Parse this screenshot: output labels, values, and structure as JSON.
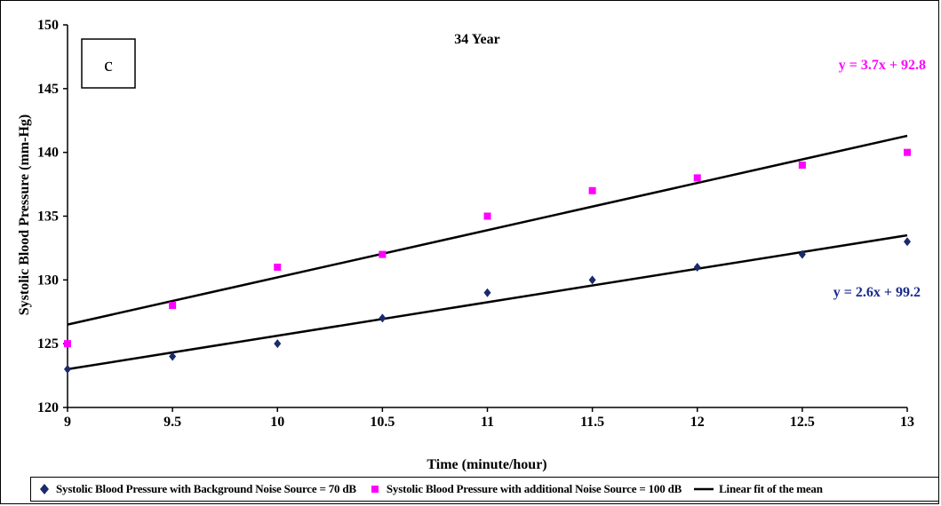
{
  "chart_data": {
    "type": "scatter",
    "panel_label": "c",
    "title": "34 Year",
    "xlabel": "Time (minute/hour)",
    "ylabel": "Systolic Blood Pressure (mm-Hg)",
    "xlim": [
      9,
      13
    ],
    "ylim": [
      120,
      150
    ],
    "x_ticks": [
      "9",
      "9.5",
      "10",
      "10.5",
      "11",
      "11.5",
      "12",
      "12.5",
      "13"
    ],
    "y_ticks": [
      "120",
      "125",
      "130",
      "135",
      "140",
      "145",
      "150"
    ],
    "grid": false,
    "legend_position": "bottom",
    "series": [
      {
        "name": "Systolic Blood Pressure with Background Noise Source = 70 dB",
        "marker": "diamond",
        "color": "#1a2a6c",
        "x": [
          9,
          9.5,
          10,
          10.5,
          11,
          11.5,
          12,
          12.5,
          13
        ],
        "y": [
          123,
          124,
          125,
          127,
          129,
          130,
          131,
          132,
          133
        ],
        "fit_equation": "y = 2.6x + 99.2",
        "fit_line": [
          [
            9,
            123
          ],
          [
            13,
            133.5
          ]
        ],
        "equation_color": "#1a2a8c"
      },
      {
        "name": "Systolic Blood Pressure with additional Noise Source = 100 dB",
        "marker": "square",
        "color": "#ff00ff",
        "x": [
          9,
          9.5,
          10,
          10.5,
          11,
          11.5,
          12,
          12.5,
          13
        ],
        "y": [
          125,
          128,
          131,
          132,
          135,
          137,
          138,
          139,
          140
        ],
        "fit_equation": "y = 3.7x + 92.8",
        "fit_line": [
          [
            9,
            126.5
          ],
          [
            13,
            141.3
          ]
        ],
        "equation_color": "#ff00ff"
      }
    ],
    "fit_legend_label": "Linear fit of the mean"
  }
}
